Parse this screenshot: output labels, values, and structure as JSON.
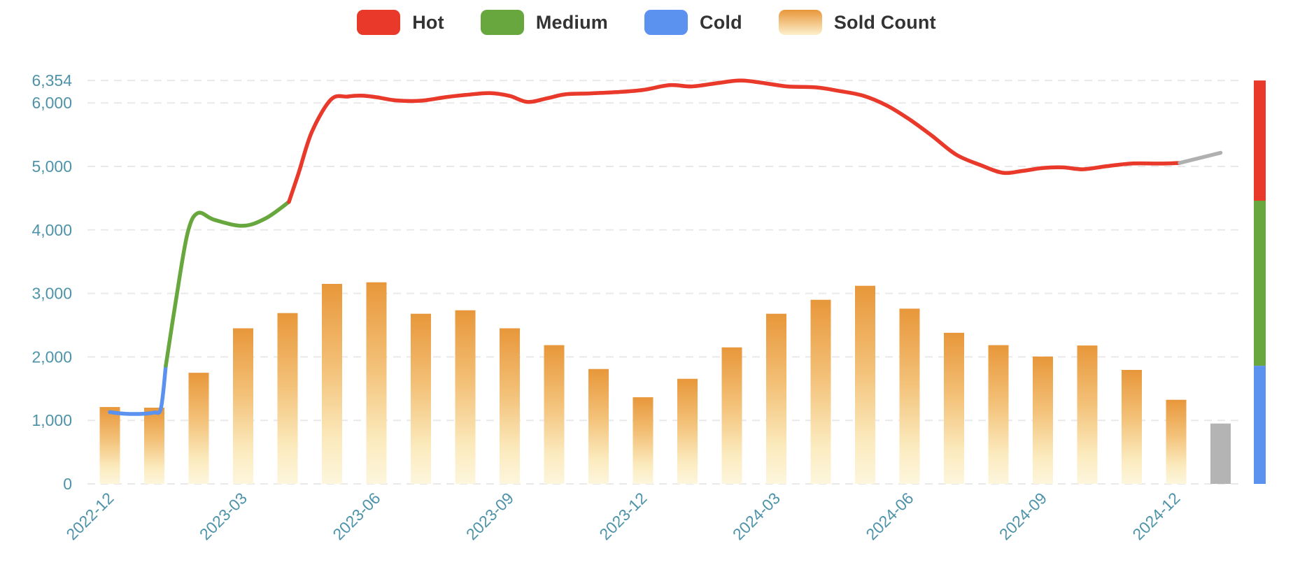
{
  "legend": {
    "items": [
      {
        "label": "Hot",
        "swatch": {
          "type": "solid",
          "color": "#e8392b"
        }
      },
      {
        "label": "Medium",
        "swatch": {
          "type": "solid",
          "color": "#67a73e"
        }
      },
      {
        "label": "Cold",
        "swatch": {
          "type": "solid",
          "color": "#5b92f0"
        }
      },
      {
        "label": "Sold Count",
        "swatch": {
          "type": "gradient",
          "top": "#e8973a",
          "bottom": "#fdf0cc"
        }
      }
    ]
  },
  "chart_data": {
    "type": "combo-bar-line",
    "title": "",
    "y_axis": {
      "ticks": [
        6354,
        6000,
        5000,
        4000,
        3000,
        2000,
        1000,
        0
      ],
      "min": 0,
      "max": 6354,
      "grid": "dashed"
    },
    "x_axis": {
      "tick_every": 3,
      "rotation_deg": 45,
      "visible_ticks": [
        "2022-12",
        "2023-03",
        "2023-06",
        "2023-09",
        "2023-12",
        "2024-03",
        "2024-06",
        "2024-09",
        "2024-12"
      ]
    },
    "categories": [
      "2022-12",
      "2023-01",
      "2023-02",
      "2023-03",
      "2023-04",
      "2023-05",
      "2023-06",
      "2023-07",
      "2023-08",
      "2023-09",
      "2023-10",
      "2023-11",
      "2023-12",
      "2024-01",
      "2024-02",
      "2024-03",
      "2024-04",
      "2024-05",
      "2024-06",
      "2024-07",
      "2024-08",
      "2024-09",
      "2024-10",
      "2024-11",
      "2024-12",
      "2025-01"
    ],
    "bars": {
      "name": "Sold Count",
      "values": [
        1210,
        1200,
        1750,
        2450,
        2690,
        3150,
        3175,
        2680,
        2735,
        2450,
        2185,
        1810,
        1365,
        1655,
        2150,
        2680,
        2900,
        3120,
        2760,
        2380,
        2185,
        2005,
        2180,
        1795,
        1325,
        950
      ],
      "forecast_months": [
        "2025-01"
      ]
    },
    "price_line": {
      "x_unit": "month-index-from-2022-12",
      "segments": [
        {
          "name": "Cold",
          "color_key": "cold",
          "points": [
            [
              0,
              1130
            ],
            [
              0.35,
              1105
            ],
            [
              0.75,
              1105
            ],
            [
              1,
              1125
            ],
            [
              1.15,
              1190
            ],
            [
              1.26,
              1860
            ]
          ]
        },
        {
          "name": "Medium",
          "color_key": "medium",
          "points": [
            [
              1.26,
              1860
            ],
            [
              1.5,
              2950
            ],
            [
              1.75,
              3950
            ],
            [
              1.98,
              4265
            ],
            [
              2.35,
              4160
            ],
            [
              2.99,
              4065
            ],
            [
              3.5,
              4180
            ],
            [
              4.03,
              4440
            ]
          ]
        },
        {
          "name": "Hot",
          "color_key": "hot",
          "points": [
            [
              4.03,
              4440
            ],
            [
              4.25,
              4900
            ],
            [
              4.55,
              5550
            ],
            [
              4.98,
              6055
            ],
            [
              5.35,
              6100
            ],
            [
              5.65,
              6115
            ],
            [
              6,
              6090
            ],
            [
              6.45,
              6040
            ],
            [
              7,
              6035
            ],
            [
              7.55,
              6090
            ],
            [
              8,
              6125
            ],
            [
              8.55,
              6155
            ],
            [
              9,
              6110
            ],
            [
              9.4,
              6015
            ],
            [
              9.85,
              6075
            ],
            [
              10.25,
              6135
            ],
            [
              10.8,
              6150
            ],
            [
              11.4,
              6170
            ],
            [
              12,
              6205
            ],
            [
              12.6,
              6280
            ],
            [
              13.1,
              6260
            ],
            [
              13.7,
              6315
            ],
            [
              14.2,
              6354
            ],
            [
              14.75,
              6310
            ],
            [
              15.25,
              6260
            ],
            [
              15.9,
              6245
            ],
            [
              16.4,
              6190
            ],
            [
              16.95,
              6115
            ],
            [
              17.5,
              5955
            ],
            [
              18,
              5740
            ],
            [
              18.5,
              5485
            ],
            [
              19.05,
              5185
            ],
            [
              19.6,
              5020
            ],
            [
              20.1,
              4900
            ],
            [
              20.55,
              4930
            ],
            [
              21,
              4975
            ],
            [
              21.45,
              4985
            ],
            [
              21.9,
              4955
            ],
            [
              22.4,
              5000
            ],
            [
              23,
              5045
            ],
            [
              23.6,
              5045
            ],
            [
              24.08,
              5055
            ]
          ]
        },
        {
          "name": "Forecast",
          "color_key": "forecast",
          "points": [
            [
              24.08,
              5055
            ],
            [
              25,
              5215
            ]
          ]
        }
      ]
    },
    "temperature_zones": [
      {
        "label": "Hot",
        "from": 4460,
        "to": 6354
      },
      {
        "label": "Medium",
        "from": 1860,
        "to": 4460
      },
      {
        "label": "Cold",
        "from": 0,
        "to": 1860
      }
    ],
    "colors": {
      "hot": "#e8392b",
      "medium": "#67a73e",
      "cold": "#5b92f0",
      "forecast_line": "#b0b0b0",
      "forecast_bar": "#b4b4b4",
      "bar_gradient_top": "#e8973a",
      "bar_gradient_mid": "#f3c178",
      "bar_gradient_low": "#fbeabd",
      "bar_gradient_bottom": "#fdf6dd",
      "axis_label": "#4e93a9",
      "grid": "#e9e9e9",
      "legend_text": "#333333",
      "background": "#ffffff"
    }
  }
}
